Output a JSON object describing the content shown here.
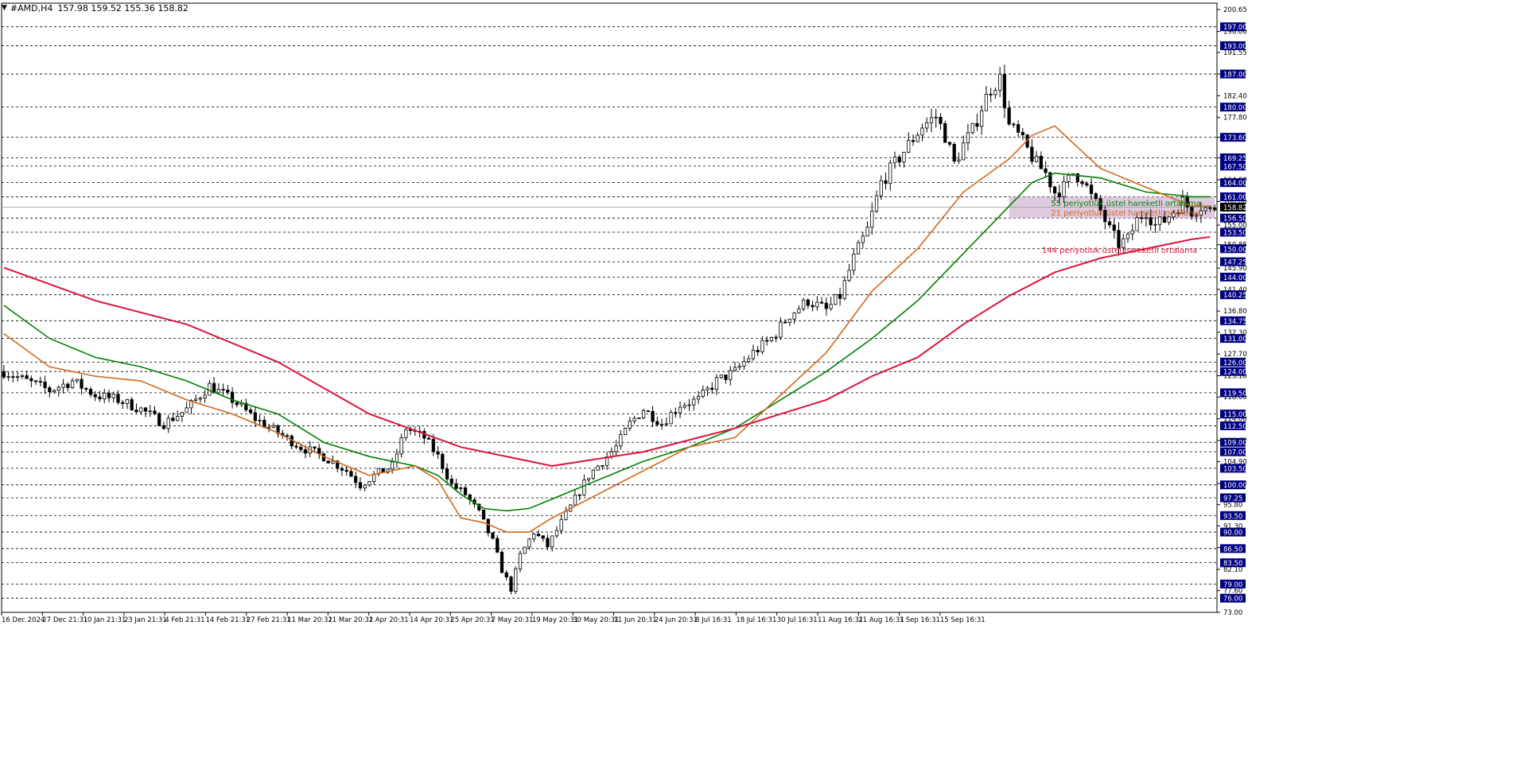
{
  "header": {
    "symbol": "#AMD,H4",
    "ohlc": "157.98 159.52 155.36 158.82"
  },
  "colors": {
    "background": "#ffffff",
    "grid": "#000000",
    "candle": "#000000",
    "ema21": "#d2691e",
    "ema55": "#008000",
    "ema144": "#dc143c",
    "zone": "#d8bfd8",
    "label_box": "#000080",
    "label_text": "#ffffff"
  },
  "chart_data": {
    "type": "candlestick",
    "symbol": "#AMD",
    "timeframe": "H4",
    "ylim": [
      73.0,
      202.0
    ],
    "price_axis_ticks": [
      "200.65",
      "196.00",
      "191.55",
      "187.00",
      "182.40",
      "177.80",
      "173.60",
      "169.25",
      "164.60",
      "160.00",
      "155.00",
      "150.85",
      "145.90",
      "141.40",
      "136.80",
      "132.30",
      "127.70",
      "123.10",
      "118.60",
      "114.00",
      "109.40",
      "104.90",
      "100.30",
      "95.80",
      "91.30",
      "86.70",
      "82.10",
      "77.60",
      "73.00"
    ],
    "horizontal_levels": [
      "197.00",
      "193.00",
      "187.00",
      "180.00",
      "173.60",
      "169.25",
      "167.50",
      "164.00",
      "161.00",
      "156.50",
      "153.50",
      "150.00",
      "147.25",
      "144.00",
      "140.25",
      "134.75",
      "131.00",
      "126.00",
      "124.00",
      "119.50",
      "115.00",
      "112.50",
      "109.00",
      "107.00",
      "103.50",
      "100.00",
      "97.25",
      "93.50",
      "90.00",
      "86.50",
      "83.50",
      "79.00",
      "76.00"
    ],
    "current_price": "158.82",
    "x_tick_labels": [
      "16 Dec 2024",
      "27 Dec 21:31",
      "10 Jan 21:31",
      "23 Jan 21:31",
      "4 Feb 21:31",
      "14 Feb 21:31",
      "27 Feb 21:31",
      "11 Mar 20:31",
      "21 Mar 20:31",
      "2 Apr 20:31",
      "14 Apr 20:31",
      "25 Apr 20:31",
      "7 May 20:31",
      "19 May 20:31",
      "30 May 20:31",
      "11 Jun 20:31",
      "24 Jun 20:31",
      "8 Jul 16:31",
      "18 Jul 16:31",
      "30 Jul 16:31",
      "11 Aug 16:31",
      "21 Aug 16:31",
      "3 Sep 16:31",
      "15 Sep 16:31"
    ],
    "close_path": [
      [
        0,
        124
      ],
      [
        5,
        122
      ],
      [
        10,
        120
      ],
      [
        15,
        122
      ],
      [
        20,
        119
      ],
      [
        25,
        118
      ],
      [
        30,
        116
      ],
      [
        35,
        113
      ],
      [
        40,
        116
      ],
      [
        45,
        121
      ],
      [
        50,
        118
      ],
      [
        55,
        114
      ],
      [
        60,
        111
      ],
      [
        65,
        108
      ],
      [
        70,
        106
      ],
      [
        75,
        103
      ],
      [
        78,
        100
      ],
      [
        81,
        102
      ],
      [
        85,
        104
      ],
      [
        88,
        112
      ],
      [
        92,
        110
      ],
      [
        95,
        106
      ],
      [
        98,
        100
      ],
      [
        101,
        98
      ],
      [
        104,
        94
      ],
      [
        107,
        88
      ],
      [
        109,
        82
      ],
      [
        111,
        78
      ],
      [
        113,
        85
      ],
      [
        116,
        90
      ],
      [
        119,
        87
      ],
      [
        122,
        92
      ],
      [
        125,
        97
      ],
      [
        128,
        102
      ],
      [
        131,
        105
      ],
      [
        134,
        108
      ],
      [
        137,
        113
      ],
      [
        140,
        116
      ],
      [
        144,
        113
      ],
      [
        148,
        117
      ],
      [
        152,
        118
      ],
      [
        156,
        122
      ],
      [
        160,
        124
      ],
      [
        164,
        128
      ],
      [
        168,
        131
      ],
      [
        172,
        136
      ],
      [
        176,
        139
      ],
      [
        180,
        137
      ],
      [
        183,
        140
      ],
      [
        186,
        148
      ],
      [
        189,
        154
      ],
      [
        192,
        164
      ],
      [
        195,
        168
      ],
      [
        198,
        172
      ],
      [
        201,
        176
      ],
      [
        204,
        178
      ],
      [
        206,
        174
      ],
      [
        208,
        168
      ],
      [
        210,
        172
      ],
      [
        212,
        175
      ],
      [
        214,
        180
      ],
      [
        216,
        184
      ],
      [
        218,
        186
      ],
      [
        220,
        176
      ],
      [
        222,
        174
      ],
      [
        224,
        171
      ],
      [
        226,
        168
      ],
      [
        228,
        166
      ],
      [
        230,
        162
      ],
      [
        232,
        163
      ],
      [
        234,
        166
      ],
      [
        236,
        165
      ],
      [
        238,
        161
      ],
      [
        240,
        158
      ],
      [
        242,
        154
      ],
      [
        244,
        151
      ],
      [
        246,
        152
      ],
      [
        248,
        156
      ],
      [
        250,
        158
      ],
      [
        252,
        155
      ],
      [
        254,
        156
      ],
      [
        256,
        158
      ],
      [
        258,
        160
      ],
      [
        260,
        158
      ],
      [
        262,
        159
      ],
      [
        264,
        158
      ],
      [
        265,
        158.82
      ]
    ],
    "series": [
      {
        "name": "55 periyotluk üstel hareketli ortalama",
        "x": [
          0,
          10,
          20,
          30,
          40,
          50,
          60,
          70,
          80,
          90,
          95,
          100,
          105,
          110,
          115,
          120,
          130,
          140,
          150,
          160,
          170,
          180,
          190,
          200,
          210,
          220,
          225,
          230,
          240,
          250,
          260,
          264
        ],
        "y": [
          138,
          131,
          127,
          125,
          122,
          118,
          115,
          109,
          106,
          104,
          102,
          98,
          95,
          94.5,
          95,
          97,
          101,
          105,
          108,
          112,
          118,
          124,
          131,
          139,
          149,
          159,
          164,
          166,
          165,
          162,
          161,
          161
        ]
      },
      {
        "name": "21 periyotluk üstel hareketli ortalama",
        "x": [
          0,
          10,
          20,
          30,
          40,
          50,
          60,
          70,
          80,
          90,
          95,
          100,
          105,
          110,
          115,
          120,
          130,
          140,
          150,
          160,
          170,
          180,
          190,
          200,
          210,
          220,
          225,
          230,
          240,
          250,
          260,
          264
        ],
        "y": [
          132,
          125,
          123,
          122,
          118,
          115,
          111,
          106,
          102,
          104,
          101,
          93,
          92,
          90,
          90,
          93,
          98,
          103,
          108,
          110,
          119,
          128,
          141,
          150,
          162,
          169,
          174,
          176,
          167,
          163,
          159,
          159
        ]
      },
      {
        "name": "144 periyotluk üstel hareketli ortalama",
        "x": [
          0,
          20,
          40,
          60,
          80,
          100,
          120,
          140,
          160,
          180,
          190,
          200,
          210,
          220,
          230,
          240,
          250,
          260,
          264
        ],
        "y": [
          146,
          139,
          134,
          126,
          115,
          108,
          104,
          107,
          112,
          118,
          123,
          127,
          134,
          140,
          145,
          148,
          150,
          152,
          152.5
        ]
      }
    ],
    "zone": {
      "x_start": 220,
      "x_end": 265,
      "y_low": 156.5,
      "y_high": 161
    }
  }
}
